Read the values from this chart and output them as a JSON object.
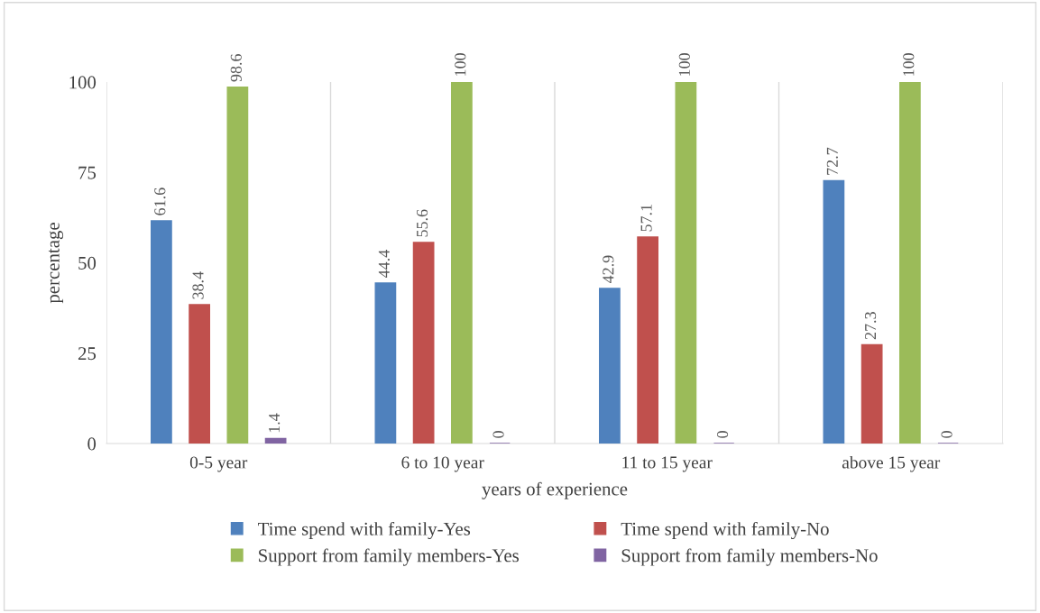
{
  "chart_data": {
    "type": "bar",
    "xlabel": "years of experience",
    "ylabel": "percentage",
    "categories": [
      "0-5 year",
      "6 to 10 year",
      "11 to 15 year",
      "above 15 year"
    ],
    "series": [
      {
        "name": "Time spend with family-Yes",
        "color": "#4f81bd",
        "values": [
          61.6,
          44.4,
          42.9,
          72.7
        ]
      },
      {
        "name": "Time spend with family-No",
        "color": "#c0504d",
        "values": [
          38.4,
          55.6,
          57.1,
          27.3
        ]
      },
      {
        "name": "Support from family members-Yes",
        "color": "#9bbb59",
        "values": [
          98.6,
          100,
          100,
          100
        ]
      },
      {
        "name": "Support from family members-No",
        "color": "#8064a2",
        "values": [
          1.4,
          0,
          0,
          0
        ]
      }
    ],
    "ylim": [
      0,
      100
    ],
    "yticks": [
      0,
      25,
      50,
      75,
      100
    ],
    "grid": "x",
    "legend": "bottom",
    "data_labels": true
  }
}
